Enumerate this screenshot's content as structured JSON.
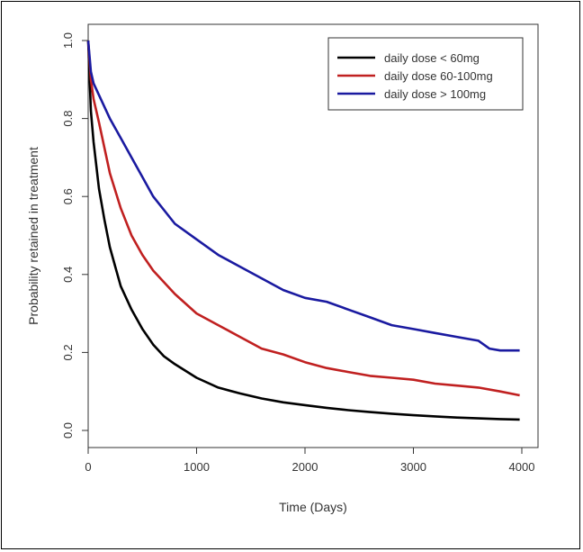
{
  "chart_data": {
    "type": "line",
    "xlabel": "Time (Days)",
    "ylabel": "Probability retained in treatment",
    "xlim": [
      0,
      4000
    ],
    "ylim": [
      0,
      1.0
    ],
    "xticks": [
      0,
      1000,
      2000,
      3000,
      4000
    ],
    "yticks": [
      0.0,
      0.2,
      0.4,
      0.6,
      0.8,
      1.0
    ],
    "ytick_labels": [
      "0.0",
      "0.2",
      "0.4",
      "0.6",
      "0.8",
      "1.0"
    ],
    "grid": false,
    "legend_position": "top-right",
    "series": [
      {
        "name": "daily dose < 60mg",
        "color": "#000000",
        "x": [
          0,
          25,
          50,
          100,
          150,
          200,
          250,
          300,
          400,
          500,
          600,
          700,
          800,
          1000,
          1200,
          1400,
          1600,
          1800,
          2000,
          2200,
          2400,
          2600,
          2800,
          3000,
          3200,
          3400,
          3600,
          3800,
          3980
        ],
        "y": [
          1.0,
          0.82,
          0.74,
          0.62,
          0.54,
          0.47,
          0.42,
          0.37,
          0.31,
          0.26,
          0.22,
          0.19,
          0.17,
          0.135,
          0.11,
          0.095,
          0.082,
          0.072,
          0.065,
          0.058,
          0.052,
          0.047,
          0.043,
          0.039,
          0.036,
          0.033,
          0.031,
          0.029,
          0.028
        ]
      },
      {
        "name": "daily dose 60-100mg",
        "color": "#c02020",
        "x": [
          0,
          25,
          50,
          100,
          200,
          300,
          400,
          500,
          600,
          800,
          1000,
          1200,
          1400,
          1600,
          1800,
          2000,
          2200,
          2400,
          2600,
          2800,
          3000,
          3200,
          3400,
          3600,
          3800,
          3980
        ],
        "y": [
          1.0,
          0.9,
          0.85,
          0.79,
          0.66,
          0.57,
          0.5,
          0.45,
          0.41,
          0.35,
          0.3,
          0.27,
          0.24,
          0.21,
          0.195,
          0.175,
          0.16,
          0.15,
          0.14,
          0.135,
          0.13,
          0.12,
          0.115,
          0.11,
          0.1,
          0.09
        ]
      },
      {
        "name": "daily dose > 100mg",
        "color": "#1a1aa0",
        "x": [
          0,
          25,
          50,
          100,
          200,
          300,
          400,
          500,
          600,
          800,
          1000,
          1200,
          1400,
          1600,
          1800,
          2000,
          2200,
          2400,
          2600,
          2800,
          3000,
          3200,
          3400,
          3600,
          3700,
          3800,
          3980
        ],
        "y": [
          1.0,
          0.92,
          0.89,
          0.86,
          0.8,
          0.75,
          0.7,
          0.65,
          0.6,
          0.53,
          0.49,
          0.45,
          0.42,
          0.39,
          0.36,
          0.34,
          0.33,
          0.31,
          0.29,
          0.27,
          0.26,
          0.25,
          0.24,
          0.23,
          0.21,
          0.205,
          0.205
        ]
      }
    ]
  }
}
